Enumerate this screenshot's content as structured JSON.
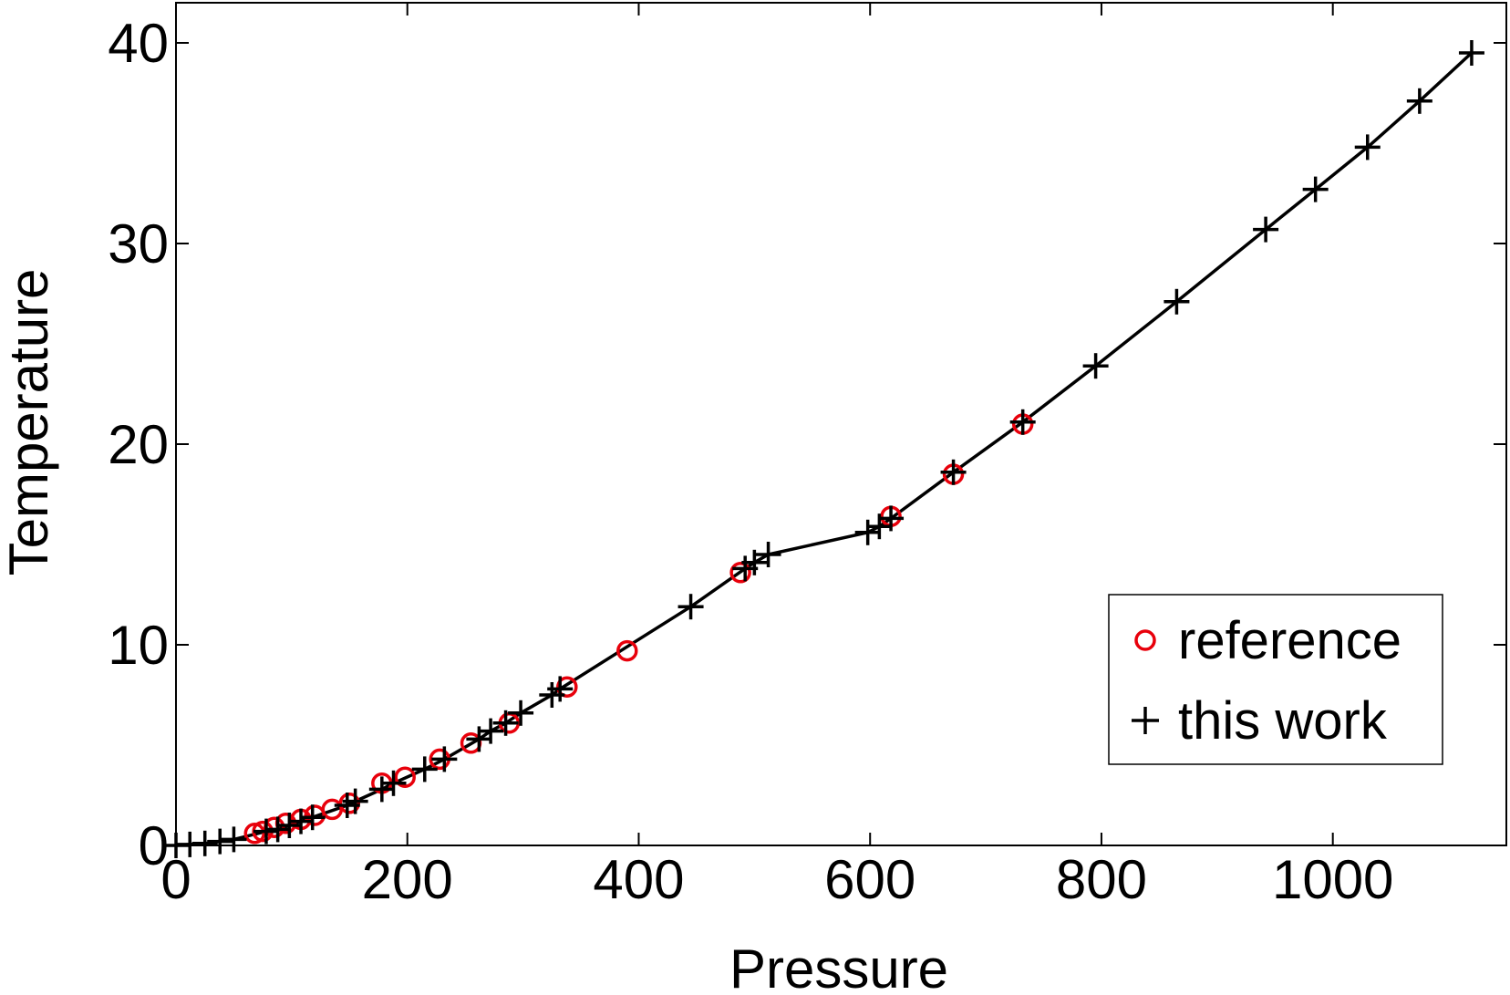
{
  "chart_data": {
    "type": "scatter",
    "title": "",
    "xlabel": "Pressure",
    "ylabel": "Temperature",
    "xlim": [
      0,
      1150
    ],
    "ylim": [
      0,
      42
    ],
    "xticks": [
      0,
      200,
      400,
      600,
      800,
      1000
    ],
    "yticks": [
      0,
      10,
      20,
      30,
      40
    ],
    "grid": false,
    "legend_position": "lower-right",
    "colors": {
      "reference": "#e8000b",
      "this_work": "#000000",
      "line": "#000000"
    },
    "series": [
      {
        "name": "reference",
        "marker": "circle",
        "color": "#e8000b",
        "x": [
          68,
          75,
          85,
          95,
          108,
          120,
          135,
          150,
          178,
          198,
          228,
          255,
          288,
          338,
          390,
          488,
          618,
          672,
          732
        ],
        "y": [
          0.6,
          0.7,
          0.9,
          1.1,
          1.3,
          1.5,
          1.8,
          2.1,
          3.1,
          3.4,
          4.3,
          5.1,
          6.1,
          7.9,
          9.7,
          13.6,
          16.4,
          18.5,
          21.0
        ]
      },
      {
        "name": "this work",
        "marker": "plus",
        "color": "#000000",
        "line": true,
        "x": [
          0,
          12,
          25,
          38,
          50,
          78,
          88,
          98,
          108,
          118,
          148,
          155,
          178,
          188,
          215,
          232,
          262,
          272,
          285,
          298,
          325,
          332,
          445,
          492,
          500,
          512,
          598,
          608,
          618,
          672,
          732,
          795,
          865,
          942,
          985,
          1030,
          1075,
          1120
        ],
        "y": [
          0,
          0.05,
          0.1,
          0.2,
          0.3,
          0.7,
          0.8,
          1.0,
          1.2,
          1.4,
          2.0,
          2.2,
          2.8,
          3.1,
          3.8,
          4.3,
          5.3,
          5.7,
          6.1,
          6.6,
          7.5,
          7.8,
          11.9,
          13.8,
          14.1,
          14.5,
          15.6,
          15.9,
          16.3,
          18.6,
          21.1,
          23.9,
          27.1,
          30.7,
          32.7,
          34.8,
          37.1,
          39.5
        ]
      }
    ]
  }
}
